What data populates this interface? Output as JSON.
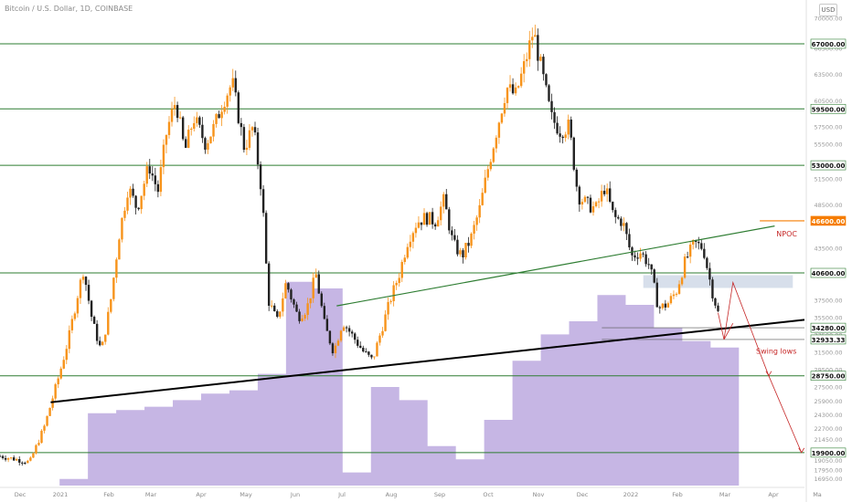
{
  "header": {
    "symbol": "Bitcoin / U.S. Dollar, 1D, COINBASE"
  },
  "currency_button": "USD",
  "colors": {
    "up": "#f7931a",
    "down": "#222222",
    "horizontal_level": "#2e7d32",
    "trendline": "#2e7d32",
    "support_trendline": "#000000",
    "volume_profile": "#b39ddb",
    "npoc": "#f57c00",
    "annotation": "#c62828",
    "zone": "#90a4c8"
  },
  "chart_data": {
    "type": "candlestick",
    "x_axis": {
      "type": "time",
      "labels": [
        "Dec",
        "2021",
        "Feb",
        "Mar",
        "Apr",
        "May",
        "Jun",
        "Jul",
        "Aug",
        "Sep",
        "Oct",
        "Nov",
        "Dec",
        "2022",
        "Feb",
        "Mar",
        "Apr",
        "Ma"
      ]
    },
    "y_axis": {
      "min": 16100,
      "max": 71200,
      "tick_labels": [
        "70000.00",
        "66500.00",
        "63500.00",
        "60500.00",
        "57500.00",
        "55500.00",
        "51500.00",
        "48500.00",
        "46500.00",
        "43500.00",
        "40500.00",
        "37500.00",
        "35500.00",
        "33500.00",
        "31500.00",
        "29500.00",
        "27500.00",
        "25900.00",
        "24300.00",
        "22700.00",
        "21450.00",
        "20150.00",
        "19050.00",
        "17950.00",
        "16950.00"
      ],
      "tick_values": [
        70000,
        66500,
        63500,
        60500,
        57500,
        55500,
        51500,
        48500,
        46500,
        43500,
        40500,
        37500,
        35500,
        33500,
        31500,
        29500,
        27500,
        25900,
        24300,
        22700,
        21450,
        20150,
        19050,
        17950,
        16950
      ]
    },
    "key_levels": [
      {
        "value": 67000,
        "label": "67000.00"
      },
      {
        "value": 59500,
        "label": "59500.00"
      },
      {
        "value": 53000,
        "label": "53000.00"
      },
      {
        "value": 46600,
        "label": "46600.00"
      },
      {
        "value": 40600,
        "label": "40600.00"
      },
      {
        "value": 34280,
        "label": "34280.00"
      },
      {
        "value": 32933.33,
        "label": "32933.33"
      },
      {
        "value": 28750,
        "label": "28750.00"
      },
      {
        "value": 19900,
        "label": "19900.00"
      }
    ],
    "price_path": [
      [
        0,
        19500
      ],
      [
        1,
        18800
      ],
      [
        1.5,
        23000
      ],
      [
        2,
        29000
      ],
      [
        2.3,
        33000
      ],
      [
        2.6,
        38000
      ],
      [
        2.8,
        41000
      ],
      [
        3.1,
        35000
      ],
      [
        3.4,
        31500
      ],
      [
        3.7,
        37000
      ],
      [
        4.0,
        45000
      ],
      [
        4.3,
        50500
      ],
      [
        4.6,
        48000
      ],
      [
        5.0,
        53000
      ],
      [
        5.3,
        50000
      ],
      [
        5.6,
        57000
      ],
      [
        5.9,
        60500
      ],
      [
        6.2,
        54500
      ],
      [
        6.5,
        58500
      ],
      [
        6.9,
        55500
      ],
      [
        7.2,
        57500
      ],
      [
        7.5,
        60500
      ],
      [
        7.8,
        62500
      ],
      [
        8.2,
        55000
      ],
      [
        8.5,
        57500
      ],
      [
        8.8,
        49500
      ],
      [
        9.0,
        37500
      ],
      [
        9.3,
        35000
      ],
      [
        9.6,
        39500
      ],
      [
        10.0,
        35500
      ],
      [
        10.3,
        36500
      ],
      [
        10.6,
        40500
      ],
      [
        10.9,
        34500
      ],
      [
        11.2,
        31500
      ],
      [
        11.5,
        35000
      ],
      [
        11.8,
        33500
      ],
      [
        12.2,
        31500
      ],
      [
        12.5,
        30500
      ],
      [
        12.8,
        34000
      ],
      [
        13.1,
        37500
      ],
      [
        13.4,
        40500
      ],
      [
        13.7,
        44500
      ],
      [
        14.0,
        46500
      ],
      [
        14.3,
        47000
      ],
      [
        14.6,
        46500
      ],
      [
        14.9,
        49000
      ],
      [
        15.2,
        44000
      ],
      [
        15.5,
        42500
      ],
      [
        15.8,
        44500
      ],
      [
        16.1,
        48000
      ],
      [
        16.4,
        53000
      ],
      [
        16.7,
        57500
      ],
      [
        17.0,
        62000
      ],
      [
        17.3,
        61000
      ],
      [
        17.6,
        64500
      ],
      [
        17.9,
        68500
      ],
      [
        18.2,
        63500
      ],
      [
        18.5,
        58500
      ],
      [
        18.8,
        57000
      ],
      [
        19.1,
        57500
      ],
      [
        19.4,
        49500
      ],
      [
        19.7,
        48500
      ],
      [
        20.0,
        48000
      ],
      [
        20.3,
        50500
      ],
      [
        20.6,
        47000
      ],
      [
        20.9,
        46500
      ],
      [
        21.2,
        42500
      ],
      [
        21.5,
        43000
      ],
      [
        21.8,
        41500
      ],
      [
        22.1,
        36500
      ],
      [
        22.4,
        37000
      ],
      [
        22.7,
        38500
      ],
      [
        23.0,
        42000
      ],
      [
        23.3,
        44000
      ],
      [
        23.6,
        43500
      ],
      [
        23.9,
        38500
      ],
      [
        24.1,
        36000
      ]
    ],
    "volume_profile_steps": [
      [
        0,
        2
      ],
      [
        1,
        22
      ],
      [
        2,
        23
      ],
      [
        3,
        24
      ],
      [
        4,
        26
      ],
      [
        5,
        28
      ],
      [
        6,
        29
      ],
      [
        7,
        34
      ],
      [
        8,
        62
      ],
      [
        9,
        60
      ],
      [
        10,
        4
      ],
      [
        11,
        30
      ],
      [
        12,
        26
      ],
      [
        13,
        12
      ],
      [
        14,
        8
      ],
      [
        15,
        20
      ],
      [
        16,
        38
      ],
      [
        17,
        46
      ],
      [
        18,
        50
      ],
      [
        19,
        58
      ],
      [
        20,
        55
      ],
      [
        21,
        48
      ],
      [
        22,
        44
      ],
      [
        23,
        42
      ]
    ],
    "trendlines": [
      {
        "from": [
          1.7,
          25700
        ],
        "to": [
          27,
          35200
        ],
        "style": "solid-black"
      },
      {
        "from": [
          11.3,
          36800
        ],
        "to": [
          26,
          46000
        ],
        "style": "solid-green"
      }
    ],
    "annotations": [
      "NPOC",
      "Swing lows"
    ],
    "grid": false
  }
}
